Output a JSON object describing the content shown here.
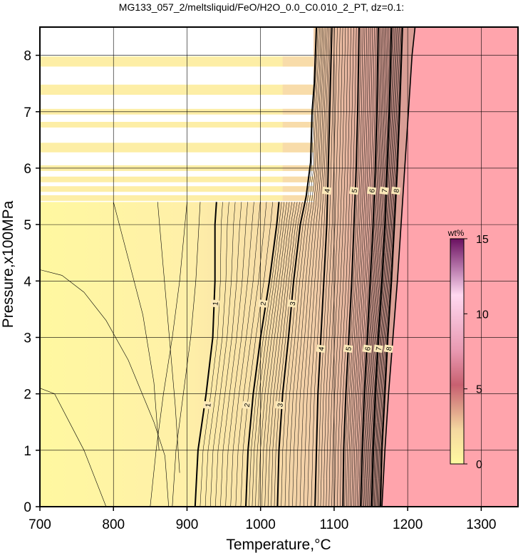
{
  "chart_data": {
    "type": "heatmap",
    "title": "MG133_057_2/meltsliquid/FeO/H2O_0.0_C0.010_2_PT, dz=0.1:",
    "xlabel": "Temperature,°C",
    "ylabel": "Pressure,x100MPa",
    "xlim": [
      700,
      1350
    ],
    "ylim": [
      0,
      8.5
    ],
    "x_ticks": [
      700,
      800,
      900,
      1000,
      1100,
      1200,
      1300
    ],
    "y_ticks": [
      0,
      1,
      2,
      3,
      4,
      5,
      6,
      7,
      8
    ],
    "grid": true,
    "colorbar": {
      "unit": "wt%",
      "range": [
        0,
        15
      ],
      "ticks": [
        0,
        5,
        10,
        15
      ],
      "colors": [
        "#fffaa0",
        "#f0c898",
        "#b84050",
        "#ffc0d8",
        "#7a1a6a"
      ]
    },
    "regions": {
      "liquid_absent_color": "#ffa4ac",
      "no_data_color": "#ffffff"
    },
    "contours": {
      "major": [
        {
          "level": 1,
          "points": [
            [
              911,
              0
            ],
            [
              915,
              1
            ],
            [
              926,
              2
            ],
            [
              935,
              3
            ],
            [
              938,
              4
            ],
            [
              938,
              5
            ],
            [
              940,
              5.4
            ]
          ]
        },
        {
          "level": 2,
          "points": [
            [
              980,
              0
            ],
            [
              983,
              1
            ],
            [
              990,
              2
            ],
            [
              1000,
              3
            ],
            [
              1012,
              4
            ],
            [
              1022,
              5
            ],
            [
              1025,
              5.4
            ]
          ]
        },
        {
          "level": 3,
          "points": [
            [
              1023,
              0
            ],
            [
              1025,
              1
            ],
            [
              1030,
              2
            ],
            [
              1038,
              3
            ],
            [
              1045,
              4
            ],
            [
              1054,
              5
            ],
            [
              1062,
              5.5
            ],
            [
              1068,
              6.1
            ],
            [
              1070,
              7.0
            ],
            [
              1073,
              7.5
            ],
            [
              1076,
              8.5
            ]
          ]
        },
        {
          "level": 4,
          "points": [
            [
              1074,
              0
            ],
            [
              1076,
              1
            ],
            [
              1078,
              2
            ],
            [
              1082,
              3
            ],
            [
              1086,
              4
            ],
            [
              1090,
              5
            ],
            [
              1092,
              6
            ],
            [
              1094,
              7
            ],
            [
              1097,
              8.5
            ]
          ]
        },
        {
          "level": 5,
          "points": [
            [
              1112,
              0
            ],
            [
              1113,
              1
            ],
            [
              1116,
              2
            ],
            [
              1120,
              3
            ],
            [
              1124,
              4
            ],
            [
              1127,
              5
            ],
            [
              1130,
              6
            ],
            [
              1132,
              7
            ],
            [
              1134,
              8.5
            ]
          ]
        },
        {
          "level": 6,
          "points": [
            [
              1136,
              0
            ],
            [
              1138,
              1
            ],
            [
              1141,
              2
            ],
            [
              1145,
              3
            ],
            [
              1149,
              4
            ],
            [
              1153,
              5
            ],
            [
              1156,
              6
            ],
            [
              1158,
              7
            ],
            [
              1160,
              8.5
            ]
          ]
        },
        {
          "level": 7,
          "points": [
            [
              1151,
              0
            ],
            [
              1153,
              1
            ],
            [
              1156,
              2
            ],
            [
              1160,
              3
            ],
            [
              1165,
              4
            ],
            [
              1169,
              5
            ],
            [
              1172,
              6
            ],
            [
              1175,
              7
            ],
            [
              1178,
              8.5
            ]
          ]
        },
        {
          "level": 8,
          "points": [
            [
              1163,
              0
            ],
            [
              1165,
              1
            ],
            [
              1169,
              2
            ],
            [
              1173,
              3
            ],
            [
              1178,
              4
            ],
            [
              1182,
              5
            ],
            [
              1186,
              6
            ],
            [
              1189,
              7
            ],
            [
              1193,
              8.5
            ]
          ]
        }
      ],
      "liquidus": [
        [
          1165,
          0
        ],
        [
          1169,
          1
        ],
        [
          1174,
          2
        ],
        [
          1180,
          3
        ],
        [
          1186,
          4
        ],
        [
          1191,
          5
        ],
        [
          1196,
          6
        ],
        [
          1201,
          7
        ],
        [
          1206,
          8
        ],
        [
          1210,
          8.5
        ]
      ]
    },
    "labels_shown": [
      {
        "text": "1",
        "x": 928,
        "y": 1.8
      },
      {
        "text": "1",
        "x": 938,
        "y": 3.6
      },
      {
        "text": "2",
        "x": 981,
        "y": 1.8
      },
      {
        "text": "2",
        "x": 1003,
        "y": 3.6
      },
      {
        "text": "3",
        "x": 1026,
        "y": 1.8
      },
      {
        "text": "3",
        "x": 1043,
        "y": 3.6
      },
      {
        "text": "4",
        "x": 1082,
        "y": 2.8
      },
      {
        "text": "4",
        "x": 1090,
        "y": 5.6
      },
      {
        "text": "5",
        "x": 1119,
        "y": 2.8
      },
      {
        "text": "5",
        "x": 1127,
        "y": 5.6
      },
      {
        "text": "6",
        "x": 1145,
        "y": 2.8
      },
      {
        "text": "6",
        "x": 1151,
        "y": 5.6
      },
      {
        "text": "7",
        "x": 1160,
        "y": 2.8
      },
      {
        "text": "7",
        "x": 1168,
        "y": 5.6
      },
      {
        "text": "8",
        "x": 1174,
        "y": 2.8
      },
      {
        "text": "8",
        "x": 1184,
        "y": 5.6
      }
    ]
  }
}
